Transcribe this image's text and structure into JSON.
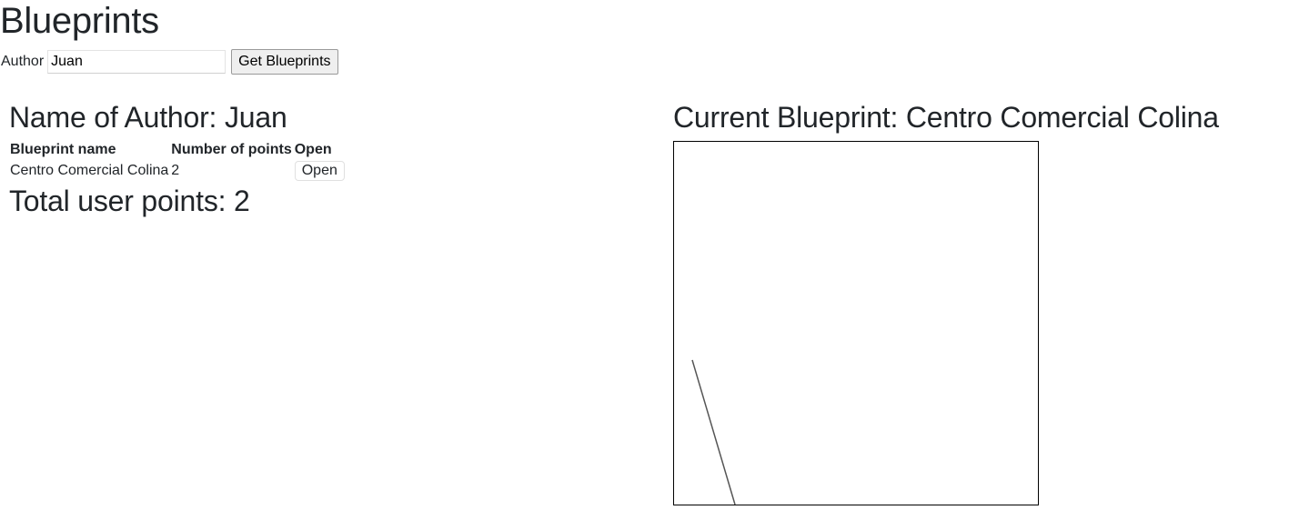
{
  "app": {
    "title": "Blueprints"
  },
  "author_form": {
    "label": "Author",
    "value": "Juan",
    "button_label": "Get Blueprints"
  },
  "author_section": {
    "heading_prefix": "Name of Author:",
    "author_name": "Juan",
    "table": {
      "headers": [
        "Blueprint name",
        "Number of points",
        "Open"
      ],
      "rows": [
        {
          "name": "Centro Comercial Colina",
          "points": "2",
          "open_label": "Open"
        }
      ]
    },
    "total_prefix": "Total user points:",
    "total_points": "2"
  },
  "current_blueprint": {
    "heading_prefix": "Current Blueprint:",
    "name": "Centro Comercial Colina",
    "points": [
      {
        "x": 20,
        "y": 240
      },
      {
        "x": 67,
        "y": 399
      }
    ],
    "line_color": "#555555"
  }
}
